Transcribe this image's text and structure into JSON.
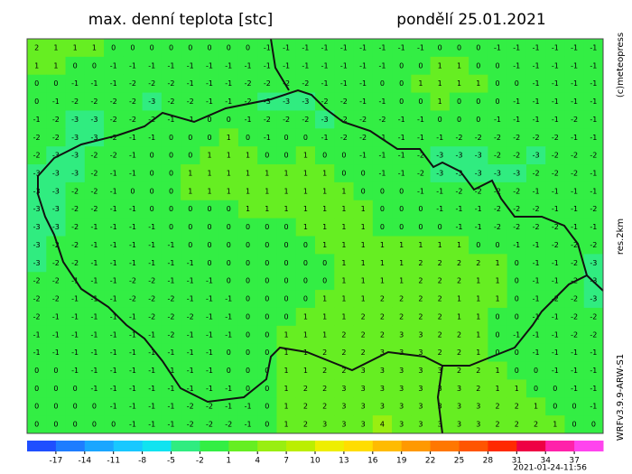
{
  "header": {
    "title": "max. denní teplota [stc]",
    "date": "pondělí 25.01.2021"
  },
  "side_labels": {
    "copyright": "(c)meteopress",
    "resolution": "res.2km",
    "model": "WRFv3.9.9-ARW-S1"
  },
  "map": {
    "grid": [
      [
        2,
        1,
        1,
        1,
        0,
        0,
        0,
        0,
        0,
        0,
        0,
        0,
        -1,
        -1,
        -1,
        -1,
        -1,
        -1,
        -1,
        -1,
        -1,
        0,
        0,
        0,
        -1,
        -1,
        -1,
        -1,
        -1,
        -1
      ],
      [
        1,
        1,
        0,
        0,
        -1,
        -1,
        -1,
        -1,
        -1,
        -1,
        -1,
        -1,
        -1,
        -1,
        -1,
        -1,
        -1,
        -1,
        -1,
        0,
        0,
        1,
        1,
        0,
        0,
        -1,
        -1,
        -1,
        -1,
        -1
      ],
      [
        0,
        0,
        -1,
        -1,
        -1,
        -2,
        -2,
        -2,
        -1,
        -1,
        -1,
        -2,
        -2,
        -2,
        -2,
        -1,
        -1,
        -1,
        0,
        0,
        1,
        1,
        1,
        1,
        0,
        0,
        -1,
        -1,
        -1,
        -1
      ],
      [
        0,
        -1,
        -2,
        -2,
        -2,
        -2,
        -3,
        -2,
        -2,
        -1,
        -1,
        -2,
        -3,
        -3,
        -3,
        -2,
        -2,
        -1,
        -1,
        0,
        0,
        1,
        0,
        0,
        0,
        -1,
        -1,
        -1,
        -1,
        -1
      ],
      [
        -1,
        -2,
        -3,
        -3,
        -2,
        -2,
        -2,
        -1,
        -1,
        0,
        0,
        -1,
        -2,
        -2,
        -2,
        -3,
        -2,
        -2,
        -2,
        -1,
        -1,
        0,
        0,
        0,
        -1,
        -1,
        -1,
        -1,
        -2,
        -1
      ],
      [
        -2,
        -2,
        -3,
        -3,
        -2,
        -1,
        -1,
        0,
        0,
        0,
        1,
        0,
        -1,
        0,
        0,
        -1,
        -2,
        -2,
        -1,
        -1,
        -1,
        -1,
        -2,
        -2,
        -2,
        -2,
        -2,
        -2,
        -1,
        -1
      ],
      [
        -2,
        -3,
        -3,
        -2,
        -2,
        -1,
        0,
        0,
        0,
        1,
        1,
        1,
        0,
        0,
        1,
        0,
        0,
        -1,
        -1,
        -1,
        -2,
        -3,
        -3,
        -3,
        -2,
        -2,
        -3,
        -2,
        -2,
        -2
      ],
      [
        -3,
        -3,
        -3,
        -2,
        -1,
        -1,
        0,
        0,
        1,
        1,
        1,
        1,
        1,
        1,
        1,
        1,
        0,
        0,
        -1,
        -1,
        -2,
        -3,
        -3,
        -3,
        -3,
        -3,
        -2,
        -2,
        -2,
        -1
      ],
      [
        -3,
        -3,
        -2,
        -2,
        -1,
        0,
        0,
        0,
        1,
        1,
        1,
        1,
        1,
        1,
        1,
        1,
        1,
        0,
        0,
        0,
        -1,
        -1,
        -2,
        -2,
        -2,
        -2,
        -1,
        -1,
        -1,
        -1
      ],
      [
        -3,
        -3,
        -2,
        -2,
        -1,
        -1,
        0,
        0,
        0,
        0,
        0,
        1,
        1,
        1,
        1,
        1,
        1,
        1,
        0,
        0,
        0,
        -1,
        -1,
        -1,
        -2,
        -2,
        -2,
        -1,
        -1,
        -2
      ],
      [
        -3,
        -3,
        -2,
        -1,
        -1,
        -1,
        -1,
        0,
        0,
        0,
        0,
        0,
        0,
        0,
        1,
        1,
        1,
        1,
        0,
        0,
        0,
        0,
        -1,
        -1,
        -2,
        -2,
        -2,
        -2,
        -1,
        -1
      ],
      [
        -3,
        -2,
        -2,
        -1,
        -1,
        -1,
        -1,
        -1,
        0,
        0,
        0,
        0,
        0,
        0,
        0,
        1,
        1,
        1,
        1,
        1,
        1,
        1,
        1,
        0,
        0,
        -1,
        -1,
        -2,
        -2,
        -2
      ],
      [
        -3,
        -2,
        -2,
        -1,
        -1,
        -1,
        -1,
        -1,
        -1,
        0,
        0,
        0,
        0,
        0,
        0,
        0,
        1,
        1,
        1,
        1,
        2,
        2,
        2,
        2,
        1,
        0,
        -1,
        -1,
        -2,
        -3
      ],
      [
        -2,
        -2,
        -1,
        -1,
        -1,
        -2,
        -2,
        -1,
        -1,
        -1,
        0,
        0,
        0,
        0,
        0,
        0,
        1,
        1,
        1,
        1,
        2,
        2,
        2,
        1,
        1,
        0,
        -1,
        -1,
        -2,
        -3
      ],
      [
        -2,
        -2,
        -1,
        -1,
        -1,
        -2,
        -2,
        -2,
        -1,
        -1,
        -1,
        0,
        0,
        0,
        0,
        1,
        1,
        1,
        2,
        2,
        2,
        2,
        1,
        1,
        1,
        0,
        -1,
        -2,
        -2,
        -3
      ],
      [
        -2,
        -1,
        -1,
        -1,
        -1,
        -1,
        -2,
        -2,
        -2,
        -1,
        -1,
        0,
        0,
        0,
        1,
        1,
        1,
        2,
        2,
        2,
        2,
        2,
        1,
        1,
        0,
        0,
        -1,
        -1,
        -2,
        -2
      ],
      [
        -1,
        -1,
        -1,
        -1,
        -1,
        -1,
        -1,
        -2,
        -1,
        -1,
        -1,
        0,
        0,
        1,
        1,
        1,
        2,
        2,
        2,
        3,
        3,
        2,
        2,
        1,
        0,
        -1,
        -1,
        -1,
        -2,
        -2
      ],
      [
        -1,
        -1,
        -1,
        -1,
        -1,
        -1,
        -1,
        -1,
        -1,
        -1,
        0,
        0,
        0,
        1,
        1,
        2,
        2,
        2,
        3,
        3,
        3,
        2,
        2,
        1,
        0,
        0,
        -1,
        -1,
        -1,
        -1
      ],
      [
        0,
        0,
        -1,
        -1,
        -1,
        -1,
        -1,
        -1,
        -1,
        -1,
        0,
        0,
        0,
        1,
        1,
        2,
        2,
        3,
        3,
        3,
        3,
        3,
        2,
        2,
        1,
        0,
        0,
        -1,
        -1,
        -1
      ],
      [
        0,
        0,
        0,
        -1,
        -1,
        -1,
        -1,
        -1,
        -1,
        -1,
        -1,
        0,
        0,
        1,
        2,
        2,
        3,
        3,
        3,
        3,
        3,
        3,
        3,
        2,
        1,
        1,
        0,
        0,
        -1,
        -1
      ],
      [
        0,
        0,
        0,
        0,
        -1,
        -1,
        -1,
        -1,
        -2,
        -2,
        -1,
        -1,
        0,
        1,
        2,
        2,
        3,
        3,
        3,
        3,
        3,
        3,
        3,
        3,
        2,
        2,
        1,
        0,
        0,
        -1
      ],
      [
        0,
        0,
        0,
        0,
        0,
        -1,
        -1,
        -1,
        -2,
        -2,
        -2,
        -1,
        0,
        1,
        2,
        3,
        3,
        3,
        4,
        3,
        3,
        3,
        3,
        3,
        2,
        2,
        2,
        1,
        0,
        0
      ]
    ]
  },
  "colorbar": {
    "range": [
      -20,
      40
    ],
    "ticks": [
      -17,
      -14,
      -11,
      -8,
      -5,
      -2,
      1,
      4,
      7,
      10,
      13,
      16,
      19,
      22,
      25,
      28,
      31,
      34,
      37
    ],
    "colors": [
      "#1f4fff",
      "#1e7dff",
      "#1aa6ff",
      "#18c8ff",
      "#11e3f0",
      "#30ec80",
      "#33ee44",
      "#66ee22",
      "#99ee11",
      "#bbee00",
      "#eeee00",
      "#ffdd00",
      "#ffbb00",
      "#ff9900",
      "#ff7700",
      "#ff5500",
      "#ff2a00",
      "#ee0044",
      "#ff22aa",
      "#ff44ee"
    ]
  },
  "timestamp": "2021-01-24-11:56"
}
